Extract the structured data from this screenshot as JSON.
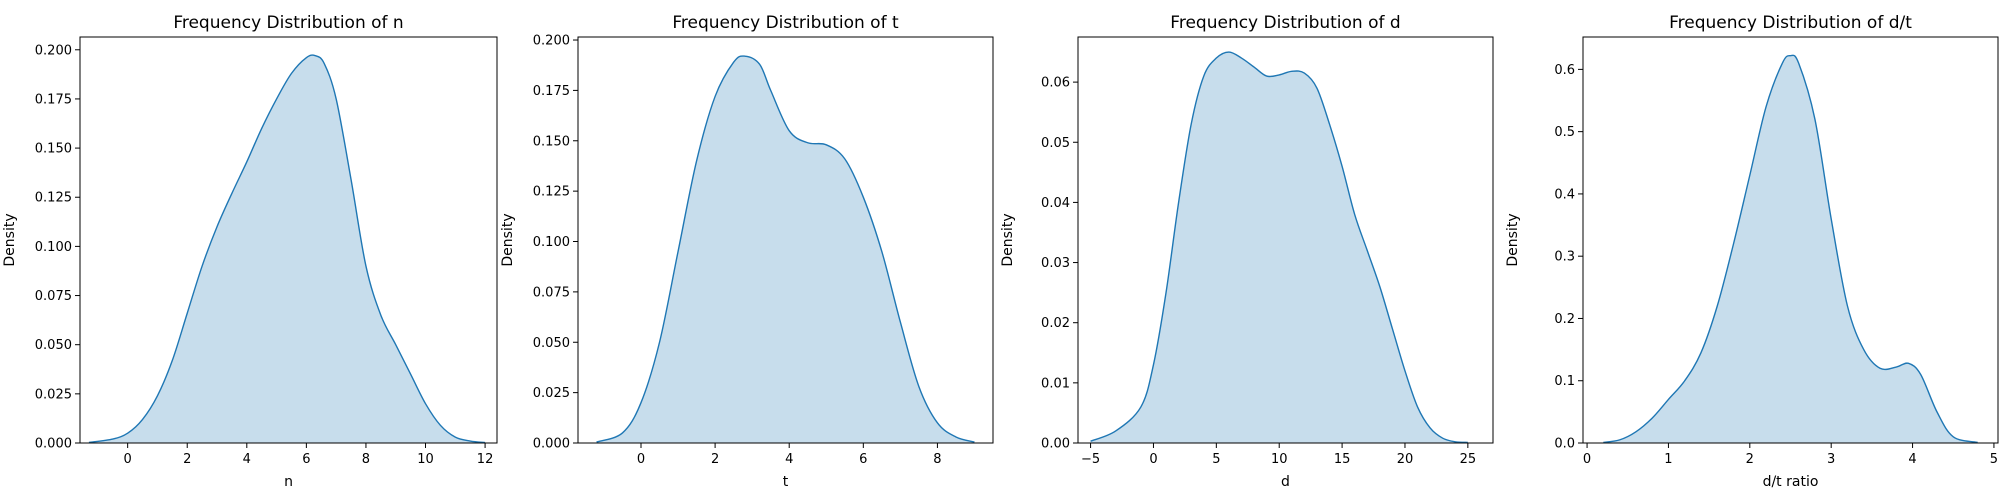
{
  "colors": {
    "line": "#1f77b4",
    "fill": "#1f77b4",
    "fill_opacity": 0.25
  },
  "chart_data": [
    {
      "type": "area",
      "title": "Frequency Distribution of n",
      "xlabel": "n",
      "ylabel": "Density",
      "xlim": [
        -1.6,
        12.4
      ],
      "ylim": [
        0,
        0.2065
      ],
      "xticks": [
        0,
        2,
        4,
        6,
        8,
        10,
        12
      ],
      "xtick_labels": [
        "0",
        "2",
        "4",
        "6",
        "8",
        "10",
        "12"
      ],
      "yticks": [
        0,
        0.025,
        0.05,
        0.075,
        0.1,
        0.125,
        0.15,
        0.175,
        0.2
      ],
      "ytick_labels": [
        "0.000",
        "0.025",
        "0.050",
        "0.075",
        "0.100",
        "0.125",
        "0.150",
        "0.175",
        "0.200"
      ],
      "x": [
        -1.3,
        -0.5,
        0,
        0.5,
        1,
        1.5,
        2,
        2.5,
        3,
        3.5,
        4,
        4.5,
        5,
        5.5,
        6,
        6.3,
        6.6,
        7,
        7.5,
        8,
        8.5,
        9,
        9.5,
        10,
        10.5,
        11,
        11.5,
        12
      ],
      "y": [
        0.0003,
        0.002,
        0.005,
        0.012,
        0.024,
        0.042,
        0.066,
        0.09,
        0.11,
        0.127,
        0.143,
        0.16,
        0.175,
        0.188,
        0.196,
        0.197,
        0.193,
        0.175,
        0.134,
        0.09,
        0.065,
        0.05,
        0.035,
        0.02,
        0.009,
        0.003,
        0.001,
        0.0002
      ]
    },
    {
      "type": "area",
      "title": "Frequency Distribution of t",
      "xlabel": "t",
      "ylabel": "Density",
      "xlim": [
        -1.7,
        9.5
      ],
      "ylim": [
        0,
        0.2015
      ],
      "xticks": [
        0,
        2,
        4,
        6,
        8
      ],
      "xtick_labels": [
        "0",
        "2",
        "4",
        "6",
        "8"
      ],
      "yticks": [
        0,
        0.025,
        0.05,
        0.075,
        0.1,
        0.125,
        0.15,
        0.175,
        0.2
      ],
      "ytick_labels": [
        "0.000",
        "0.025",
        "0.050",
        "0.075",
        "0.100",
        "0.125",
        "0.150",
        "0.175",
        "0.200"
      ],
      "x": [
        -1.2,
        -0.5,
        0,
        0.5,
        1,
        1.5,
        2,
        2.5,
        2.8,
        3.2,
        3.5,
        4,
        4.5,
        5,
        5.5,
        6,
        6.5,
        7,
        7.5,
        8,
        8.5,
        9
      ],
      "y": [
        0.0005,
        0.005,
        0.02,
        0.05,
        0.095,
        0.14,
        0.172,
        0.189,
        0.192,
        0.188,
        0.175,
        0.155,
        0.149,
        0.148,
        0.141,
        0.122,
        0.095,
        0.06,
        0.028,
        0.01,
        0.003,
        0.0005
      ]
    },
    {
      "type": "area",
      "title": "Frequency Distribution of d",
      "xlabel": "d",
      "ylabel": "Density",
      "xlim": [
        -6,
        27
      ],
      "ylim": [
        0,
        0.0675
      ],
      "xticks": [
        -5,
        0,
        5,
        10,
        15,
        20,
        25
      ],
      "xtick_labels": [
        "−5",
        "0",
        "5",
        "10",
        "15",
        "20",
        "25"
      ],
      "yticks": [
        0,
        0.01,
        0.02,
        0.03,
        0.04,
        0.05,
        0.06
      ],
      "ytick_labels": [
        "0.00",
        "0.01",
        "0.02",
        "0.03",
        "0.04",
        "0.05",
        "0.06"
      ],
      "x": [
        -5,
        -3,
        -1,
        0,
        1,
        2,
        3,
        4,
        5,
        6,
        7,
        8,
        9,
        10,
        11,
        12,
        13,
        14,
        15,
        16,
        17,
        18,
        19,
        20,
        21,
        22,
        23,
        24,
        25
      ],
      "y": [
        0.0003,
        0.002,
        0.006,
        0.013,
        0.025,
        0.04,
        0.053,
        0.061,
        0.064,
        0.065,
        0.064,
        0.0625,
        0.061,
        0.0612,
        0.0618,
        0.0615,
        0.059,
        0.053,
        0.046,
        0.038,
        0.032,
        0.026,
        0.019,
        0.012,
        0.006,
        0.0025,
        0.0008,
        0.0002,
        0.0001
      ]
    },
    {
      "type": "area",
      "title": "Frequency Distribution of d/t",
      "xlabel": "d/t ratio",
      "ylabel": "Density",
      "xlim": [
        -0.05,
        5.05
      ],
      "ylim": [
        0,
        0.652
      ],
      "xticks": [
        0,
        1,
        2,
        3,
        4,
        5
      ],
      "xtick_labels": [
        "0",
        "1",
        "2",
        "3",
        "4",
        "5"
      ],
      "yticks": [
        0,
        0.1,
        0.2,
        0.3,
        0.4,
        0.5,
        0.6
      ],
      "ytick_labels": [
        "0.0",
        "0.1",
        "0.2",
        "0.3",
        "0.4",
        "0.5",
        "0.6"
      ],
      "x": [
        0.2,
        0.4,
        0.6,
        0.8,
        1.0,
        1.2,
        1.4,
        1.6,
        1.8,
        2.0,
        2.2,
        2.4,
        2.5,
        2.6,
        2.8,
        3.0,
        3.2,
        3.4,
        3.6,
        3.8,
        3.95,
        4.1,
        4.3,
        4.5,
        4.8
      ],
      "y": [
        0.001,
        0.005,
        0.018,
        0.04,
        0.07,
        0.1,
        0.145,
        0.22,
        0.32,
        0.43,
        0.54,
        0.61,
        0.622,
        0.61,
        0.52,
        0.36,
        0.22,
        0.15,
        0.12,
        0.122,
        0.128,
        0.11,
        0.05,
        0.01,
        0.001
      ]
    }
  ]
}
